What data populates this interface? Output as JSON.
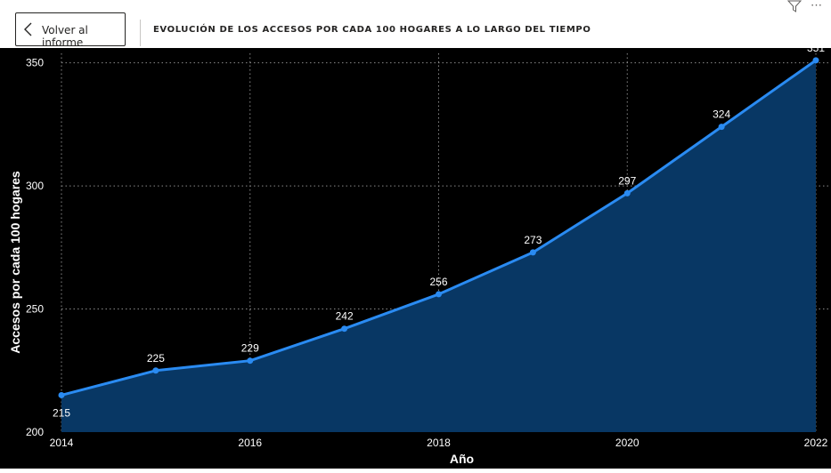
{
  "header": {
    "back_label": "Volver al informe",
    "title": "EVOLUCIÓN DE LOS ACCESOS POR CADA 100 HOGARES A LO LARGO DEL TIEMPO",
    "more_glyph": "⋯"
  },
  "colors": {
    "line": "#2a8bf2",
    "area": "#083764",
    "background": "#000000",
    "text": "#ffffff"
  },
  "chart_data": {
    "type": "area",
    "title": "EVOLUCIÓN DE LOS ACCESOS POR CADA 100 HOGARES A LO LARGO DEL TIEMPO",
    "xlabel": "Año",
    "ylabel": "Accesos por cada 100 hogares",
    "x": [
      2014,
      2015,
      2016,
      2017,
      2018,
      2019,
      2020,
      2021,
      2022
    ],
    "values": [
      215,
      225,
      229,
      242,
      256,
      273,
      297,
      324,
      351
    ],
    "xlim": [
      2014,
      2022
    ],
    "ylim": [
      200,
      356
    ],
    "x_ticks": [
      "2014",
      "2016",
      "2018",
      "2020",
      "2022"
    ],
    "y_ticks": [
      "200",
      "250",
      "300",
      "350"
    ],
    "grid": true,
    "legend": "none"
  }
}
